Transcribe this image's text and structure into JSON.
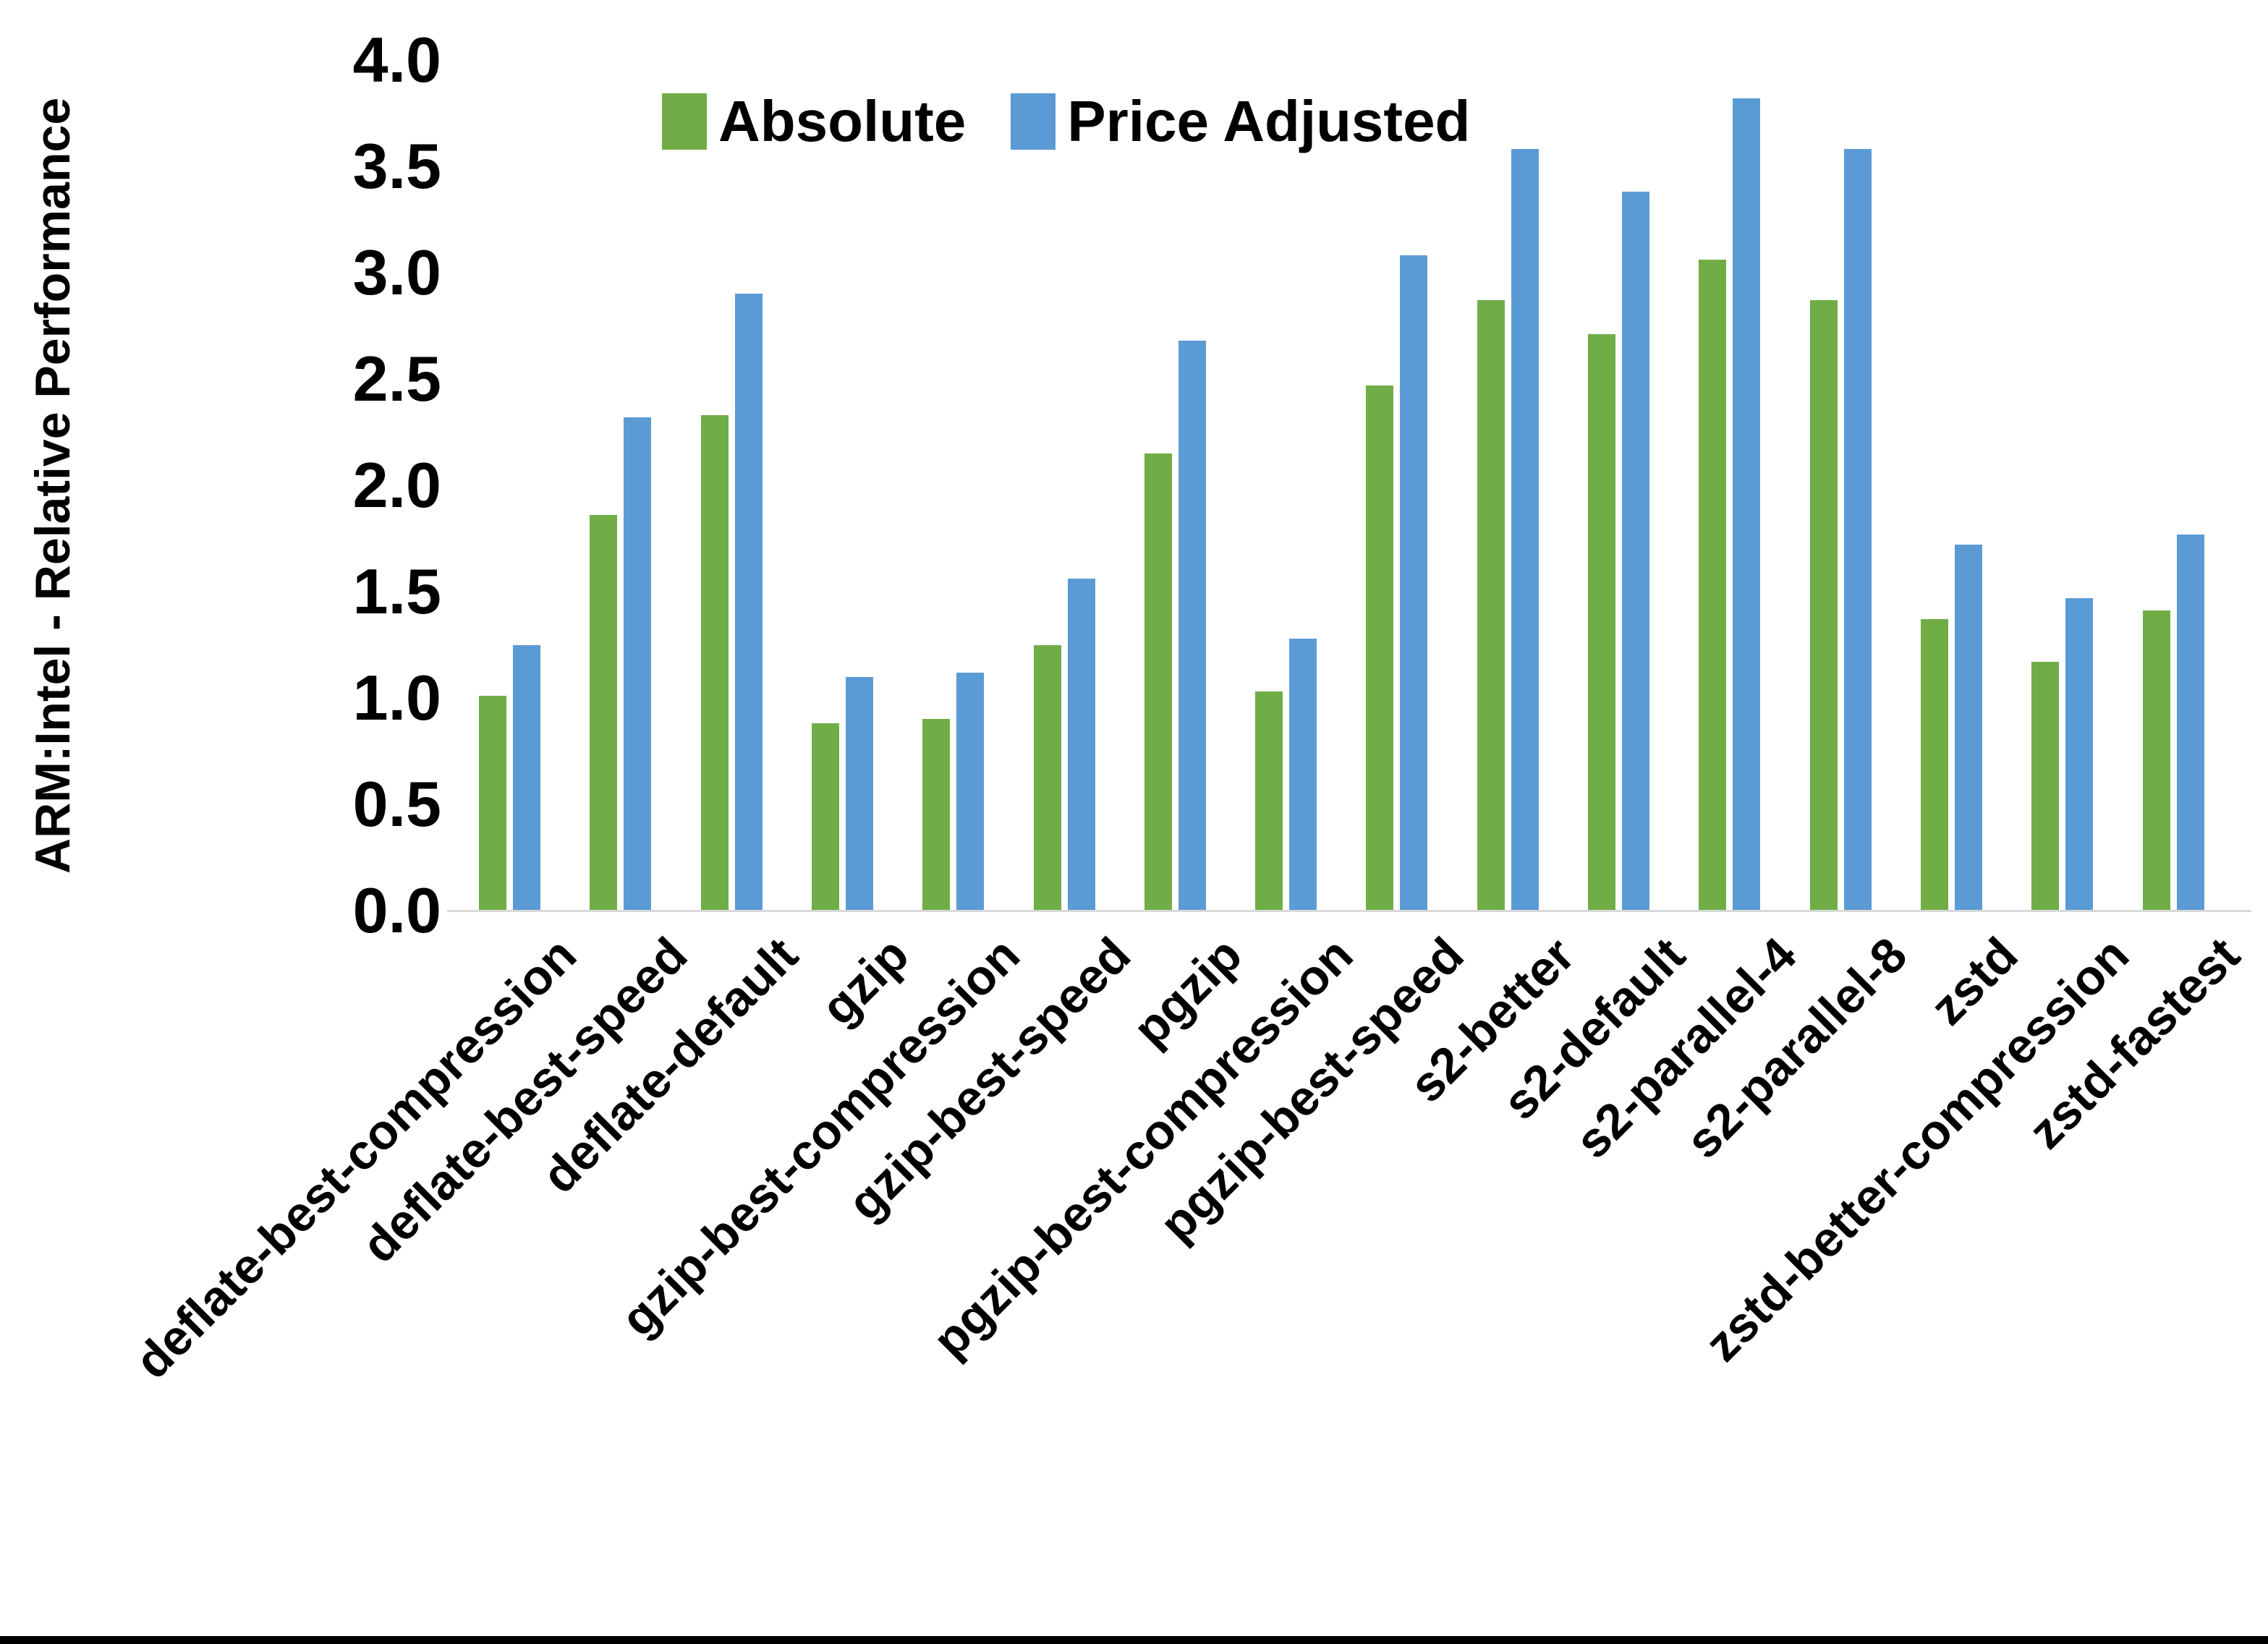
{
  "chart_data": {
    "type": "bar",
    "title": "",
    "ylabel": "ARM:Intel - Relative Performance",
    "xlabel": "",
    "ylim": [
      0.0,
      4.0
    ],
    "ytick_step": 0.5,
    "yticks": [
      "0.0",
      "0.5",
      "1.0",
      "1.5",
      "2.0",
      "2.5",
      "3.0",
      "3.5",
      "4.0"
    ],
    "grid": false,
    "legend_position": "top-center",
    "categories": [
      "deflate-best-compression",
      "deflate-best-speed",
      "deflate-default",
      "gzip",
      "gzip-best-compression",
      "gzip-best-speed",
      "pgzip",
      "pgzip-best-compression",
      "pgzip-best-speed",
      "s2-better",
      "s2-default",
      "s2-parallel-4",
      "s2-parallel-8",
      "zstd",
      "zstd-better-compression",
      "zstd-fastest"
    ],
    "series": [
      {
        "name": "Absolute",
        "color": "#70AD47",
        "values": [
          1.01,
          1.86,
          2.33,
          0.88,
          0.9,
          1.25,
          2.15,
          1.03,
          2.47,
          2.87,
          2.71,
          3.06,
          2.87,
          1.37,
          1.17,
          1.41
        ]
      },
      {
        "name": "Price Adjusted",
        "color": "#5B9BD5",
        "values": [
          1.25,
          2.32,
          2.9,
          1.1,
          1.12,
          1.56,
          2.68,
          1.28,
          3.08,
          3.58,
          3.38,
          3.82,
          3.58,
          1.72,
          1.47,
          1.77
        ]
      }
    ]
  },
  "colors": {
    "axis_line": "#D9D9D9",
    "text": "#000000",
    "bottom_border": "#000000",
    "background": "#FFFFFF"
  }
}
